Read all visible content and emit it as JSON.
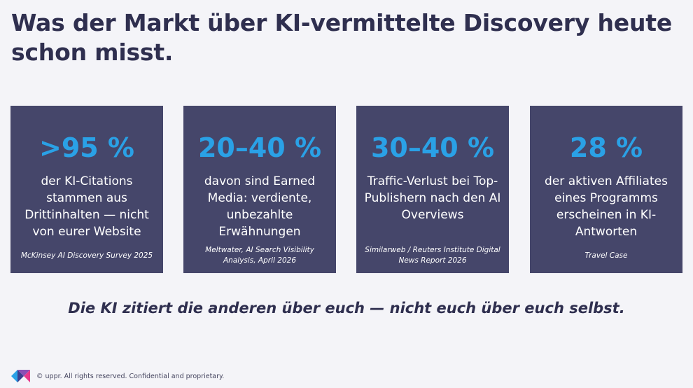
{
  "title": "Was der Markt über KI-vermittelte Discovery heute schon misst.",
  "cards": [
    {
      "stat": ">95 %",
      "description": "der KI-Citations stammen aus Drittinhalten — nicht von eurer Website",
      "source": "McKinsey AI Discovery Survey 2025"
    },
    {
      "stat": "20–40 %",
      "description": "davon sind Earned Media: verdiente, unbezahlte Erwähnungen",
      "source": "Meltwater, AI Search Visibility Analysis, April 2026"
    },
    {
      "stat": "30–40 %",
      "description": "Traffic-Verlust bei Top-Publishern nach den AI Overviews",
      "source": "Similarweb / Reuters Institute Digital News Report 2026"
    },
    {
      "stat": "28 %",
      "description": "der aktiven Affiliates eines Programms erscheinen in KI-Antworten",
      "source": "Travel Case"
    }
  ],
  "tagline": "Die KI zitiert die anderen über euch — nicht euch über euch selbst.",
  "footer": {
    "text": "© uppr.  All rights reserved. Confidential and proprietary.",
    "logo_icon": "uppr-logo-icon"
  },
  "colors": {
    "background": "#f4f4f8",
    "card": "#45466a",
    "stat": "#2aa1e6",
    "title": "#2f2f4f"
  }
}
